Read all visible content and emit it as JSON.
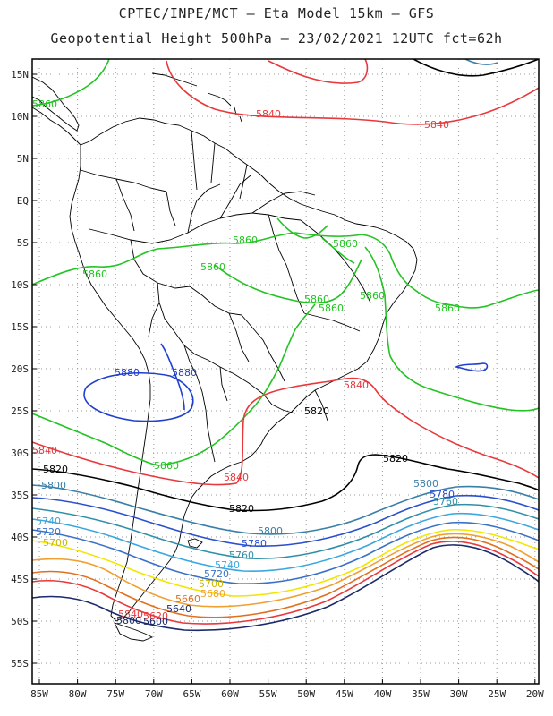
{
  "title_line1": "CPTEC/INPE/MCT –  Eta Model 15km – GFS",
  "title_line2": "Geopotential Height 500hPa – 23/02/2021 12UTC fct=62h",
  "lat_labels": [
    "15N",
    "10N",
    "5N",
    "EQ",
    "5S",
    "10S",
    "15S",
    "20S",
    "25S",
    "30S",
    "35S",
    "40S",
    "45S",
    "50S",
    "55S"
  ],
  "lon_labels": [
    "85W",
    "80W",
    "75W",
    "70W",
    "65W",
    "60W",
    "55W",
    "50W",
    "45W",
    "40W",
    "35W",
    "30W",
    "25W",
    "20W"
  ],
  "colors": {
    "5880": "#1f3fcf",
    "5860": "#22c322",
    "5840": "#e8383c",
    "5820": "#000000",
    "5800": "#3a7fa8",
    "5780": "#2a4fcf",
    "5760": "#2e8fa8",
    "5740": "#3aa6e0",
    "5720": "#3a70c8",
    "5700": "#f2e600",
    "5680": "#f0a030",
    "5660": "#e07020",
    "5640": "#1a2a6a",
    "coast": "#000000",
    "grid": "#9a9a9a"
  },
  "contour_labels": {
    "c5840_a": "5840",
    "c5840_b": "5840",
    "c5840_c": "5840",
    "c5840_d": "5840",
    "c5840_e": "5840",
    "c5840_f": "5840",
    "c5860_a": "5860",
    "c5860_b": "5860",
    "c5860_c": "5860",
    "c5860_d": "5860",
    "c5860_e": "5860",
    "c5860_f": "5860",
    "c5860_g": "5860",
    "c5860_h": "5860",
    "c5860_i": "5860",
    "c5860_j": "5860",
    "c5880_a": "5880",
    "c5880_b": "5880",
    "c5820_a": "5820",
    "c5820_b": "5820",
    "c5820_c": "5820",
    "c5820_d": "5820",
    "c5800_a": "5800",
    "c5800_b": "5800",
    "c5800_c": "5800",
    "c5800_d": "5800",
    "c5780_a": "5780",
    "c5780_b": "5780",
    "c5760_a": "5760",
    "c5760_b": "5760",
    "c5740_a": "5740",
    "c5740_b": "5740",
    "c5720_a": "5720",
    "c5720_b": "5720",
    "c5700_a": "5700",
    "c5700_b": "5700",
    "c5680_a": "5680",
    "c5660_a": "5660",
    "c5640_a": "5640",
    "c5620_a": "5620",
    "c5600_a": "5600"
  }
}
